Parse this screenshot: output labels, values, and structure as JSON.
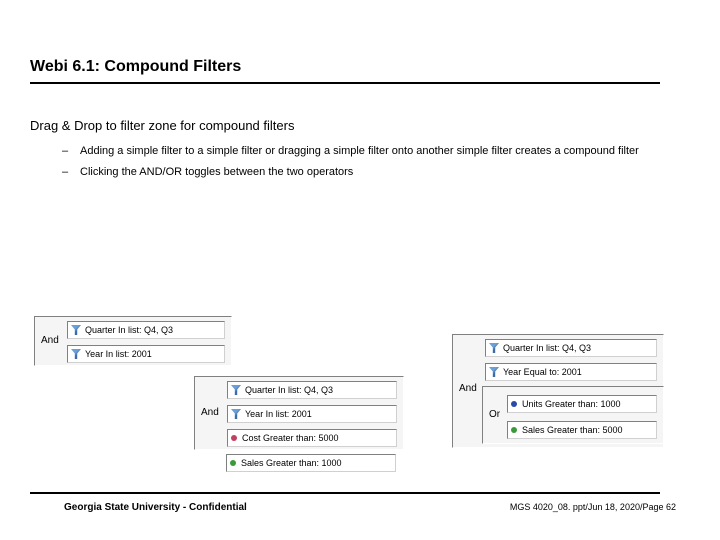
{
  "title": "Webi 6.1: Compound Filters",
  "intro": "Drag & Drop to filter zone for compound filters",
  "bullets": [
    "Adding a simple filter to a simple filter or dragging a simple filter onto another simple filter creates a compound filter",
    "Clicking the AND/OR toggles between the two operators"
  ],
  "groupA": {
    "operator": "And",
    "items": [
      {
        "label": "Quarter In list: Q4, Q3",
        "kind": "funnel"
      },
      {
        "label": "Year In list: 2001",
        "kind": "funnel"
      }
    ]
  },
  "groupB": {
    "operator": "And",
    "items": [
      {
        "label": "Quarter In list: Q4, Q3",
        "kind": "funnel"
      },
      {
        "label": "Year In list: 2001",
        "kind": "funnel"
      },
      {
        "label": "Cost Greater than: 5000",
        "kind": "dot",
        "dot_color": "#c04060"
      }
    ],
    "extra": {
      "label": "Sales Greater than: 1000",
      "kind": "dot",
      "dot_color": "#3a9a3a"
    }
  },
  "groupC": {
    "operator": "And",
    "items": [
      {
        "label": "Quarter In list: Q4, Q3",
        "kind": "funnel"
      },
      {
        "label": "Year Equal to: 2001",
        "kind": "funnel"
      }
    ],
    "inner": {
      "operator": "Or",
      "items": [
        {
          "label": "Units Greater than: 1000",
          "kind": "dot",
          "dot_color": "#2a4aa8"
        },
        {
          "label": "Sales Greater than: 5000",
          "kind": "dot",
          "dot_color": "#3a9a3a"
        }
      ]
    }
  },
  "footer_left": "Georgia State University - Confidential",
  "footer_right": "MGS 4020_08. ppt/Jun 18, 2020/Page 62",
  "colors": {
    "bg_group": "#f5f5f5",
    "bg_box": "#ffffff"
  }
}
